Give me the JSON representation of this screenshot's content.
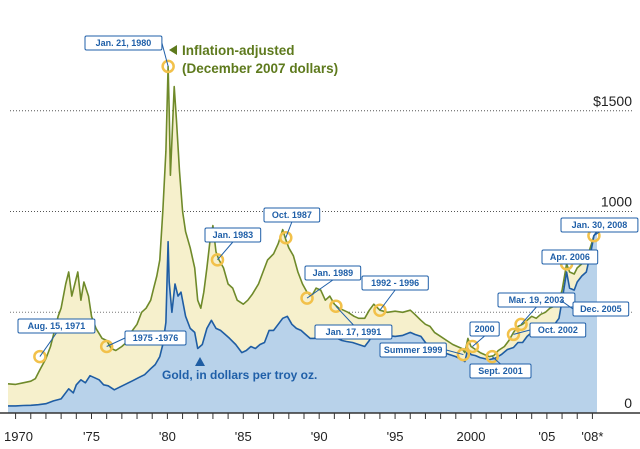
{
  "chart_data": {
    "type": "area",
    "x_tick_labels": [
      "1970",
      "'75",
      "'80",
      "'85",
      "'90",
      "'95",
      "2000",
      "'05",
      "'08*"
    ],
    "x_ticks": [
      1970,
      1975,
      1980,
      1985,
      1990,
      1995,
      2000,
      2005,
      2008
    ],
    "y_tick_labels": [
      "$1500",
      "1000",
      "0"
    ],
    "y_ticks": [
      1500,
      1000,
      0
    ],
    "ylim": [
      0,
      2000
    ],
    "xlim": [
      1969.5,
      2008.5
    ],
    "series": [
      {
        "name": "Inflation-adjusted (December 2007 dollars)",
        "color": "#6f8a2a",
        "fill": "#f6f0cc",
        "points": [
          [
            1969.5,
            145
          ],
          [
            1970.0,
            142
          ],
          [
            1970.5,
            150
          ],
          [
            1971.0,
            158
          ],
          [
            1971.3,
            170
          ],
          [
            1971.6,
            215
          ],
          [
            1972.0,
            270
          ],
          [
            1972.3,
            330
          ],
          [
            1972.6,
            420
          ],
          [
            1972.8,
            480
          ],
          [
            1973.0,
            520
          ],
          [
            1973.3,
            640
          ],
          [
            1973.5,
            700
          ],
          [
            1973.7,
            580
          ],
          [
            1973.9,
            640
          ],
          [
            1974.1,
            700
          ],
          [
            1974.3,
            560
          ],
          [
            1974.5,
            650
          ],
          [
            1974.8,
            580
          ],
          [
            1975.0,
            480
          ],
          [
            1975.3,
            420
          ],
          [
            1975.7,
            370
          ],
          [
            1976.0,
            360
          ],
          [
            1976.3,
            320
          ],
          [
            1976.6,
            310
          ],
          [
            1977.0,
            330
          ],
          [
            1977.3,
            350
          ],
          [
            1977.6,
            400
          ],
          [
            1978.0,
            440
          ],
          [
            1978.3,
            500
          ],
          [
            1978.6,
            520
          ],
          [
            1978.9,
            560
          ],
          [
            1979.1,
            620
          ],
          [
            1979.3,
            680
          ],
          [
            1979.5,
            760
          ],
          [
            1979.7,
            1000
          ],
          [
            1979.9,
            1300
          ],
          [
            1980.05,
            1720
          ],
          [
            1980.12,
            1500
          ],
          [
            1980.2,
            1180
          ],
          [
            1980.3,
            1350
          ],
          [
            1980.45,
            1620
          ],
          [
            1980.6,
            1450
          ],
          [
            1980.8,
            1200
          ],
          [
            1981.0,
            1000
          ],
          [
            1981.2,
            900
          ],
          [
            1981.5,
            820
          ],
          [
            1981.8,
            720
          ],
          [
            1982.0,
            560
          ],
          [
            1982.2,
            520
          ],
          [
            1982.4,
            600
          ],
          [
            1982.6,
            720
          ],
          [
            1982.8,
            850
          ],
          [
            1983.0,
            930
          ],
          [
            1983.2,
            800
          ],
          [
            1983.4,
            760
          ],
          [
            1983.7,
            720
          ],
          [
            1984.0,
            640
          ],
          [
            1984.3,
            620
          ],
          [
            1984.6,
            560
          ],
          [
            1985.0,
            540
          ],
          [
            1985.3,
            560
          ],
          [
            1985.6,
            590
          ],
          [
            1986.0,
            640
          ],
          [
            1986.3,
            700
          ],
          [
            1986.6,
            760
          ],
          [
            1987.0,
            790
          ],
          [
            1987.3,
            840
          ],
          [
            1987.6,
            910
          ],
          [
            1987.8,
            860
          ],
          [
            1988.0,
            820
          ],
          [
            1988.3,
            780
          ],
          [
            1988.6,
            700
          ],
          [
            1988.9,
            640
          ],
          [
            1989.2,
            600
          ],
          [
            1989.5,
            580
          ],
          [
            1989.8,
            620
          ],
          [
            1990.1,
            610
          ],
          [
            1990.4,
            560
          ],
          [
            1990.7,
            580
          ],
          [
            1991.0,
            540
          ],
          [
            1991.3,
            520
          ],
          [
            1991.6,
            510
          ],
          [
            1991.9,
            500
          ],
          [
            1992.3,
            480
          ],
          [
            1992.6,
            470
          ],
          [
            1993.0,
            470
          ],
          [
            1993.3,
            510
          ],
          [
            1993.6,
            540
          ],
          [
            1994.0,
            510
          ],
          [
            1994.5,
            500
          ],
          [
            1995.0,
            505
          ],
          [
            1995.5,
            500
          ],
          [
            1996.0,
            510
          ],
          [
            1996.3,
            490
          ],
          [
            1996.7,
            460
          ],
          [
            1997.0,
            440
          ],
          [
            1997.3,
            430
          ],
          [
            1997.6,
            400
          ],
          [
            1998.0,
            380
          ],
          [
            1998.4,
            360
          ],
          [
            1998.8,
            340
          ],
          [
            1999.1,
            330
          ],
          [
            1999.4,
            320
          ],
          [
            1999.6,
            300
          ],
          [
            1999.8,
            370
          ],
          [
            2000.0,
            330
          ],
          [
            2000.3,
            315
          ],
          [
            2000.6,
            300
          ],
          [
            2000.9,
            290
          ],
          [
            2001.2,
            280
          ],
          [
            2001.5,
            285
          ],
          [
            2001.8,
            310
          ],
          [
            2002.2,
            330
          ],
          [
            2002.5,
            360
          ],
          [
            2002.8,
            400
          ],
          [
            2003.1,
            430
          ],
          [
            2003.4,
            440
          ],
          [
            2003.7,
            460
          ],
          [
            2004.0,
            480
          ],
          [
            2004.3,
            470
          ],
          [
            2004.6,
            490
          ],
          [
            2004.9,
            500
          ],
          [
            2005.2,
            520
          ],
          [
            2005.5,
            530
          ],
          [
            2005.8,
            560
          ],
          [
            2006.0,
            610
          ],
          [
            2006.3,
            740
          ],
          [
            2006.5,
            700
          ],
          [
            2006.8,
            690
          ],
          [
            2007.0,
            720
          ],
          [
            2007.3,
            740
          ],
          [
            2007.6,
            760
          ],
          [
            2007.9,
            830
          ],
          [
            2008.1,
            880
          ],
          [
            2008.3,
            900
          ]
        ]
      },
      {
        "name": "Gold, in dollars per troy oz.",
        "color": "#1f5da3",
        "fill": "#b8d2ea",
        "points": [
          [
            1969.5,
            35
          ],
          [
            1970.0,
            35
          ],
          [
            1970.5,
            37
          ],
          [
            1971.0,
            38
          ],
          [
            1971.5,
            41
          ],
          [
            1972.0,
            46
          ],
          [
            1972.5,
            60
          ],
          [
            1973.0,
            70
          ],
          [
            1973.5,
            120
          ],
          [
            1973.8,
            100
          ],
          [
            1974.0,
            140
          ],
          [
            1974.3,
            165
          ],
          [
            1974.6,
            150
          ],
          [
            1974.9,
            185
          ],
          [
            1975.2,
            175
          ],
          [
            1975.5,
            165
          ],
          [
            1975.8,
            140
          ],
          [
            1976.1,
            135
          ],
          [
            1976.5,
            115
          ],
          [
            1976.9,
            130
          ],
          [
            1977.3,
            145
          ],
          [
            1977.7,
            160
          ],
          [
            1978.1,
            175
          ],
          [
            1978.5,
            190
          ],
          [
            1978.9,
            220
          ],
          [
            1979.2,
            240
          ],
          [
            1979.5,
            280
          ],
          [
            1979.7,
            340
          ],
          [
            1979.9,
            450
          ],
          [
            1980.05,
            850
          ],
          [
            1980.12,
            650
          ],
          [
            1980.3,
            500
          ],
          [
            1980.5,
            640
          ],
          [
            1980.7,
            580
          ],
          [
            1980.9,
            600
          ],
          [
            1981.2,
            480
          ],
          [
            1981.5,
            420
          ],
          [
            1981.8,
            400
          ],
          [
            1982.0,
            320
          ],
          [
            1982.3,
            340
          ],
          [
            1982.6,
            420
          ],
          [
            1982.9,
            460
          ],
          [
            1983.2,
            420
          ],
          [
            1983.5,
            410
          ],
          [
            1983.8,
            390
          ],
          [
            1984.1,
            370
          ],
          [
            1984.5,
            340
          ],
          [
            1984.9,
            300
          ],
          [
            1985.2,
            310
          ],
          [
            1985.5,
            330
          ],
          [
            1985.8,
            320
          ],
          [
            1986.1,
            340
          ],
          [
            1986.4,
            350
          ],
          [
            1986.7,
            410
          ],
          [
            1987.0,
            410
          ],
          [
            1987.3,
            440
          ],
          [
            1987.6,
            470
          ],
          [
            1987.9,
            480
          ],
          [
            1988.2,
            440
          ],
          [
            1988.5,
            420
          ],
          [
            1988.8,
            410
          ],
          [
            1989.1,
            390
          ],
          [
            1989.4,
            370
          ],
          [
            1989.7,
            370
          ],
          [
            1990.0,
            400
          ],
          [
            1990.3,
            380
          ],
          [
            1990.6,
            370
          ],
          [
            1990.9,
            380
          ],
          [
            1991.2,
            370
          ],
          [
            1991.5,
            360
          ],
          [
            1991.8,
            355
          ],
          [
            1992.2,
            350
          ],
          [
            1992.6,
            340
          ],
          [
            1993.0,
            330
          ],
          [
            1993.3,
            360
          ],
          [
            1993.6,
            400
          ],
          [
            1994.0,
            385
          ],
          [
            1994.5,
            385
          ],
          [
            1995.0,
            380
          ],
          [
            1995.5,
            385
          ],
          [
            1996.0,
            400
          ],
          [
            1996.3,
            390
          ],
          [
            1996.7,
            380
          ],
          [
            1997.0,
            350
          ],
          [
            1997.4,
            330
          ],
          [
            1997.8,
            310
          ],
          [
            1998.2,
            300
          ],
          [
            1998.6,
            290
          ],
          [
            1999.0,
            280
          ],
          [
            1999.4,
            265
          ],
          [
            1999.6,
            255
          ],
          [
            1999.8,
            320
          ],
          [
            2000.0,
            290
          ],
          [
            2000.3,
            285
          ],
          [
            2000.6,
            275
          ],
          [
            2000.9,
            270
          ],
          [
            2001.2,
            265
          ],
          [
            2001.6,
            272
          ],
          [
            2002.0,
            290
          ],
          [
            2002.4,
            315
          ],
          [
            2002.8,
            325
          ],
          [
            2003.1,
            350
          ],
          [
            2003.4,
            350
          ],
          [
            2003.7,
            380
          ],
          [
            2004.0,
            400
          ],
          [
            2004.3,
            395
          ],
          [
            2004.6,
            400
          ],
          [
            2004.9,
            430
          ],
          [
            2005.2,
            430
          ],
          [
            2005.5,
            440
          ],
          [
            2005.8,
            470
          ],
          [
            2006.0,
            560
          ],
          [
            2006.3,
            700
          ],
          [
            2006.5,
            620
          ],
          [
            2006.8,
            610
          ],
          [
            2007.0,
            650
          ],
          [
            2007.3,
            680
          ],
          [
            2007.6,
            700
          ],
          [
            2007.9,
            800
          ],
          [
            2008.1,
            880
          ],
          [
            2008.3,
            900
          ]
        ]
      }
    ],
    "annotations": {
      "inflation_label_line1": "Inflation-adjusted",
      "inflation_label_line2": "(December 2007 dollars)",
      "gold_label": "Gold, in dollars per troy oz."
    },
    "callouts": [
      {
        "label": "Jan. 21, 1980",
        "x": 1980.05,
        "y": 1720,
        "series": "inflation"
      },
      {
        "label": "Aug. 15, 1971",
        "x": 1971.6,
        "y": 280,
        "series": "inflation"
      },
      {
        "label": "1975 -1976",
        "x": 1976.0,
        "y": 330,
        "series": "inflation"
      },
      {
        "label": "Jan. 1983",
        "x": 1983.3,
        "y": 760,
        "series": "inflation"
      },
      {
        "label": "Oct. 1987",
        "x": 1987.8,
        "y": 870,
        "series": "inflation"
      },
      {
        "label": "Jan. 1989",
        "x": 1989.2,
        "y": 570,
        "series": "inflation"
      },
      {
        "label": "Jan. 17, 1991",
        "x": 1991.1,
        "y": 530,
        "series": "inflation"
      },
      {
        "label": "1992 - 1996",
        "x": 1994.0,
        "y": 510,
        "series": "inflation"
      },
      {
        "label": "Summer 1999",
        "x": 1999.5,
        "y": 290,
        "series": "inflation"
      },
      {
        "label": "2000",
        "x": 2000.1,
        "y": 330,
        "series": "inflation"
      },
      {
        "label": "Sept. 2001",
        "x": 2001.4,
        "y": 280,
        "series": "inflation"
      },
      {
        "label": "Oct. 2002",
        "x": 2002.8,
        "y": 390,
        "series": "inflation"
      },
      {
        "label": "Mar. 19, 2003",
        "x": 2003.3,
        "y": 440,
        "series": "inflation"
      },
      {
        "label": "Dec. 2005",
        "x": 2005.9,
        "y": 560,
        "series": "inflation"
      },
      {
        "label": "Apr. 2006",
        "x": 2006.3,
        "y": 740,
        "series": "inflation"
      },
      {
        "label": "Jan. 30, 2008",
        "x": 2008.1,
        "y": 880,
        "series": "inflation"
      }
    ]
  }
}
